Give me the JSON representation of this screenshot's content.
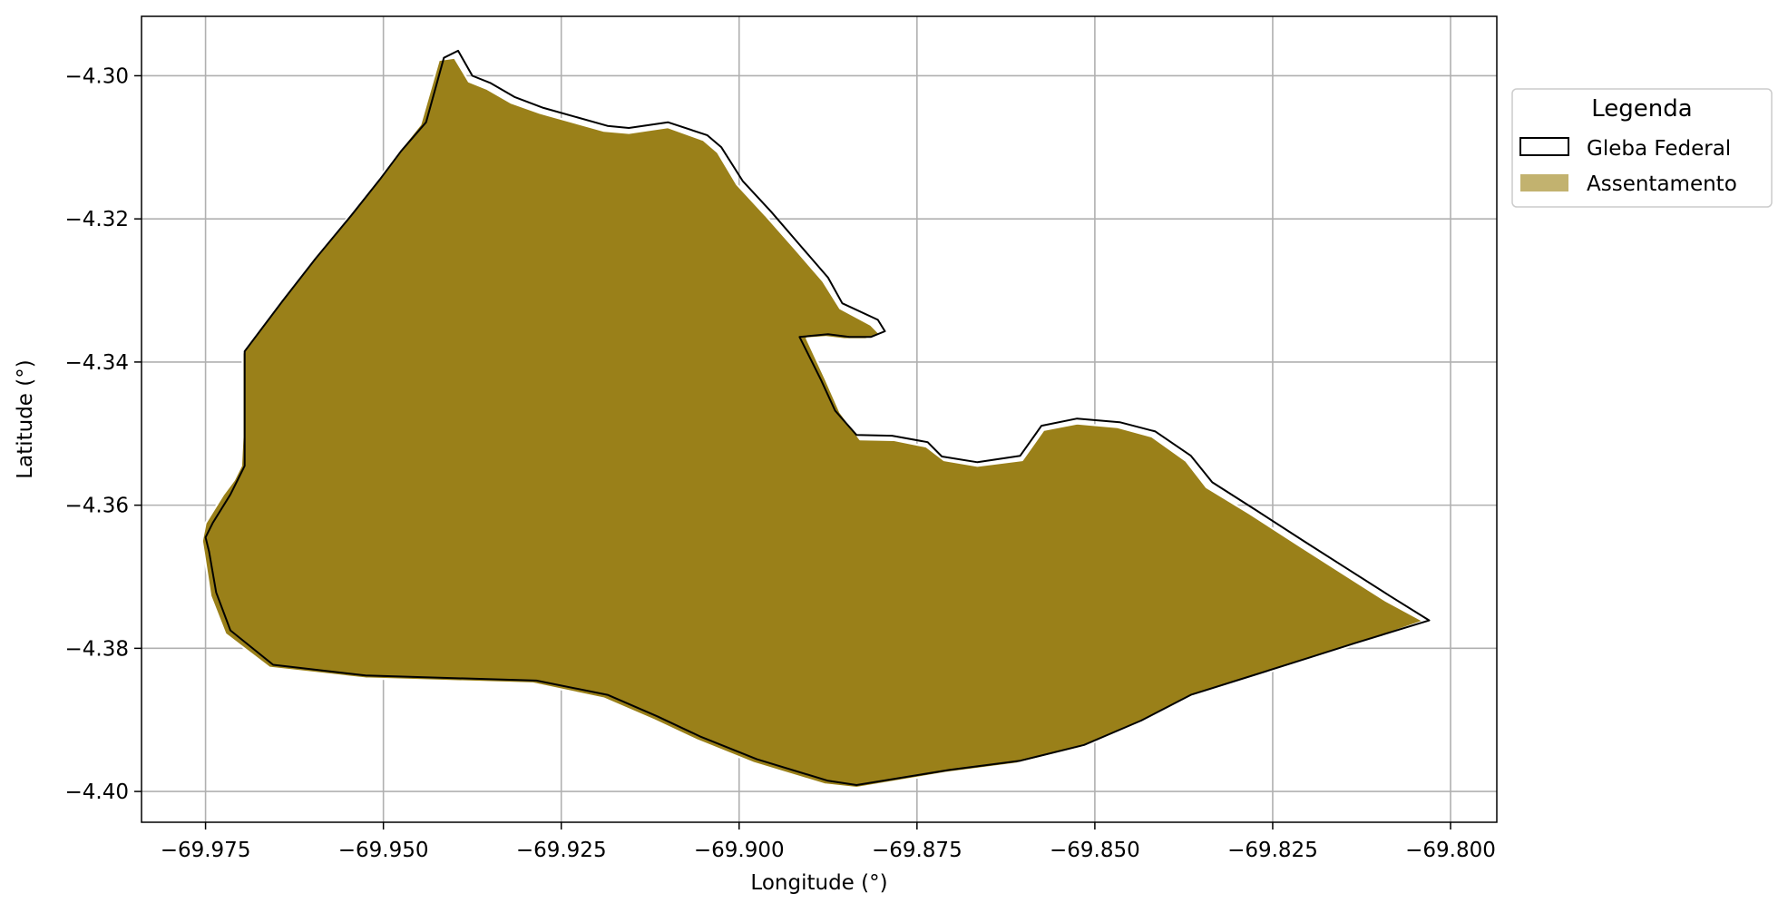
{
  "map": {
    "x_axis_label": "Longitude (°)",
    "y_axis_label": "Latitude (°)",
    "x_ticks": [
      -69.975,
      -69.95,
      -69.925,
      -69.9,
      -69.875,
      -69.85,
      -69.825,
      -69.8
    ],
    "y_ticks": [
      -4.3,
      -4.32,
      -4.34,
      -4.36,
      -4.38,
      -4.4
    ],
    "x_tick_labels": [
      "−69.975",
      "−69.950",
      "−69.925",
      "−69.900",
      "−69.875",
      "−69.850",
      "−69.825",
      "−69.800"
    ],
    "y_tick_labels": [
      "−4.30",
      "−4.32",
      "−4.34",
      "−4.36",
      "−4.38",
      "−4.40"
    ],
    "xlim": [
      -69.984,
      -69.7935
    ],
    "ylim": [
      -4.4043,
      -4.2917
    ],
    "grid": true,
    "legend": {
      "title": "Legenda",
      "placement": "outside-right-top",
      "items": [
        {
          "label": "Gleba Federal",
          "style": "outline"
        },
        {
          "label": "Assentamento",
          "style": "fill"
        }
      ]
    },
    "colors": {
      "assentamento_fill": "#9a8019",
      "assentamento_legend": "#c2b26f",
      "gleba_outline": "#000000",
      "assentamento_edge": "#ffffff",
      "grid": "#b0b0b0"
    },
    "layers": {
      "gleba_federal": [
        [
          -69.975,
          -4.3645
        ],
        [
          -69.974,
          -4.3625
        ],
        [
          -69.9715,
          -4.3585
        ],
        [
          -69.9705,
          -4.3565
        ],
        [
          -69.9695,
          -4.3545
        ],
        [
          -69.9695,
          -4.3505
        ],
        [
          -69.9695,
          -4.3385
        ],
        [
          -69.9642,
          -4.3315
        ],
        [
          -69.9595,
          -4.3255
        ],
        [
          -69.9545,
          -4.3195
        ],
        [
          -69.9505,
          -4.3145
        ],
        [
          -69.9475,
          -4.3105
        ],
        [
          -69.944,
          -4.3065
        ],
        [
          -69.9415,
          -4.2975
        ],
        [
          -69.9395,
          -4.2965
        ],
        [
          -69.9375,
          -4.3
        ],
        [
          -69.935,
          -4.301
        ],
        [
          -69.9315,
          -4.303
        ],
        [
          -69.9275,
          -4.3045
        ],
        [
          -69.9185,
          -4.307
        ],
        [
          -69.9155,
          -4.3073
        ],
        [
          -69.91,
          -4.3065
        ],
        [
          -69.9045,
          -4.3083
        ],
        [
          -69.9025,
          -4.31
        ],
        [
          -69.8995,
          -4.3147
        ],
        [
          -69.8955,
          -4.319
        ],
        [
          -69.8915,
          -4.3236
        ],
        [
          -69.8875,
          -4.3282
        ],
        [
          -69.8855,
          -4.3318
        ],
        [
          -69.8805,
          -4.3341
        ],
        [
          -69.8795,
          -4.3357
        ],
        [
          -69.8815,
          -4.3365
        ],
        [
          -69.8845,
          -4.3365
        ],
        [
          -69.8875,
          -4.3361
        ],
        [
          -69.8915,
          -4.3365
        ],
        [
          -69.8885,
          -4.3425
        ],
        [
          -69.8865,
          -4.3468
        ],
        [
          -69.8835,
          -4.3502
        ],
        [
          -69.8785,
          -4.3503
        ],
        [
          -69.8735,
          -4.3512
        ],
        [
          -69.8715,
          -4.3532
        ],
        [
          -69.8665,
          -4.354
        ],
        [
          -69.8605,
          -4.3531
        ],
        [
          -69.8575,
          -4.3489
        ],
        [
          -69.8525,
          -4.3479
        ],
        [
          -69.8465,
          -4.3484
        ],
        [
          -69.8415,
          -4.3497
        ],
        [
          -69.8365,
          -4.3531
        ],
        [
          -69.8335,
          -4.3568
        ],
        [
          -69.8275,
          -4.3606
        ],
        [
          -69.8205,
          -4.3651
        ],
        [
          -69.8145,
          -4.3689
        ],
        [
          -69.8085,
          -4.3727
        ],
        [
          -69.803,
          -4.3761
        ],
        [
          -69.8135,
          -4.3793
        ],
        [
          -69.8205,
          -4.3815
        ],
        [
          -69.8275,
          -4.3837
        ],
        [
          -69.8365,
          -4.3865
        ],
        [
          -69.8435,
          -4.3901
        ],
        [
          -69.8515,
          -4.3935
        ],
        [
          -69.8605,
          -4.3957
        ],
        [
          -69.8705,
          -4.397
        ],
        [
          -69.8835,
          -4.3991
        ],
        [
          -69.8875,
          -4.3985
        ],
        [
          -69.8975,
          -4.3955
        ],
        [
          -69.9055,
          -4.3923
        ],
        [
          -69.9115,
          -4.3895
        ],
        [
          -69.9185,
          -4.3865
        ],
        [
          -69.9285,
          -4.3845
        ],
        [
          -69.9525,
          -4.3838
        ],
        [
          -69.9655,
          -4.3823
        ],
        [
          -69.9715,
          -4.3775
        ],
        [
          -69.9735,
          -4.3722
        ],
        [
          -69.9745,
          -4.3665
        ],
        [
          -69.975,
          -4.3645
        ]
      ],
      "assentamento": [
        [
          -69.9755,
          -4.365
        ],
        [
          -69.975,
          -4.3625
        ],
        [
          -69.9725,
          -4.3585
        ],
        [
          -69.971,
          -4.3565
        ],
        [
          -69.97,
          -4.3545
        ],
        [
          -69.9698,
          -4.3505
        ],
        [
          -69.9698,
          -4.3388
        ],
        [
          -69.9645,
          -4.3318
        ],
        [
          -69.96,
          -4.3258
        ],
        [
          -69.955,
          -4.3198
        ],
        [
          -69.951,
          -4.3148
        ],
        [
          -69.948,
          -4.3108
        ],
        [
          -69.9448,
          -4.3068
        ],
        [
          -69.9422,
          -4.2978
        ],
        [
          -69.94,
          -4.2975
        ],
        [
          -69.938,
          -4.3008
        ],
        [
          -69.9355,
          -4.3018
        ],
        [
          -69.932,
          -4.3038
        ],
        [
          -69.928,
          -4.3052
        ],
        [
          -69.919,
          -4.3077
        ],
        [
          -69.9155,
          -4.308
        ],
        [
          -69.91,
          -4.3072
        ],
        [
          -69.905,
          -4.309
        ],
        [
          -69.903,
          -4.3107
        ],
        [
          -69.9003,
          -4.3152
        ],
        [
          -69.8963,
          -4.3195
        ],
        [
          -69.8922,
          -4.3241
        ],
        [
          -69.8882,
          -4.3287
        ],
        [
          -69.8858,
          -4.3325
        ],
        [
          -69.8815,
          -4.3348
        ],
        [
          -69.8802,
          -4.3361
        ],
        [
          -69.8822,
          -4.3368
        ],
        [
          -69.8852,
          -4.3368
        ],
        [
          -69.8878,
          -4.3365
        ],
        [
          -69.8905,
          -4.3367
        ],
        [
          -69.8878,
          -4.3425
        ],
        [
          -69.8858,
          -4.347
        ],
        [
          -69.883,
          -4.3508
        ],
        [
          -69.8782,
          -4.3509
        ],
        [
          -69.8737,
          -4.3518
        ],
        [
          -69.8712,
          -4.3537
        ],
        [
          -69.8665,
          -4.3545
        ],
        [
          -69.8602,
          -4.3537
        ],
        [
          -69.8572,
          -4.3495
        ],
        [
          -69.8525,
          -4.3486
        ],
        [
          -69.8468,
          -4.3491
        ],
        [
          -69.842,
          -4.3504
        ],
        [
          -69.8372,
          -4.3538
        ],
        [
          -69.8343,
          -4.3575
        ],
        [
          -69.8282,
          -4.3612
        ],
        [
          -69.8212,
          -4.3657
        ],
        [
          -69.8152,
          -4.3695
        ],
        [
          -69.8092,
          -4.3733
        ],
        [
          -69.8038,
          -4.3762
        ],
        [
          -69.814,
          -4.3797
        ],
        [
          -69.821,
          -4.3819
        ],
        [
          -69.828,
          -4.3841
        ],
        [
          -69.837,
          -4.3869
        ],
        [
          -69.844,
          -4.3905
        ],
        [
          -69.852,
          -4.3939
        ],
        [
          -69.861,
          -4.3961
        ],
        [
          -69.871,
          -4.3974
        ],
        [
          -69.8835,
          -4.3995
        ],
        [
          -69.888,
          -4.399
        ],
        [
          -69.898,
          -4.396
        ],
        [
          -69.906,
          -4.3928
        ],
        [
          -69.912,
          -4.39
        ],
        [
          -69.919,
          -4.387
        ],
        [
          -69.929,
          -4.3849
        ],
        [
          -69.9525,
          -4.3842
        ],
        [
          -69.966,
          -4.3827
        ],
        [
          -69.9722,
          -4.378
        ],
        [
          -69.9743,
          -4.3727
        ],
        [
          -69.9752,
          -4.3668
        ],
        [
          -69.9755,
          -4.365
        ]
      ]
    }
  }
}
